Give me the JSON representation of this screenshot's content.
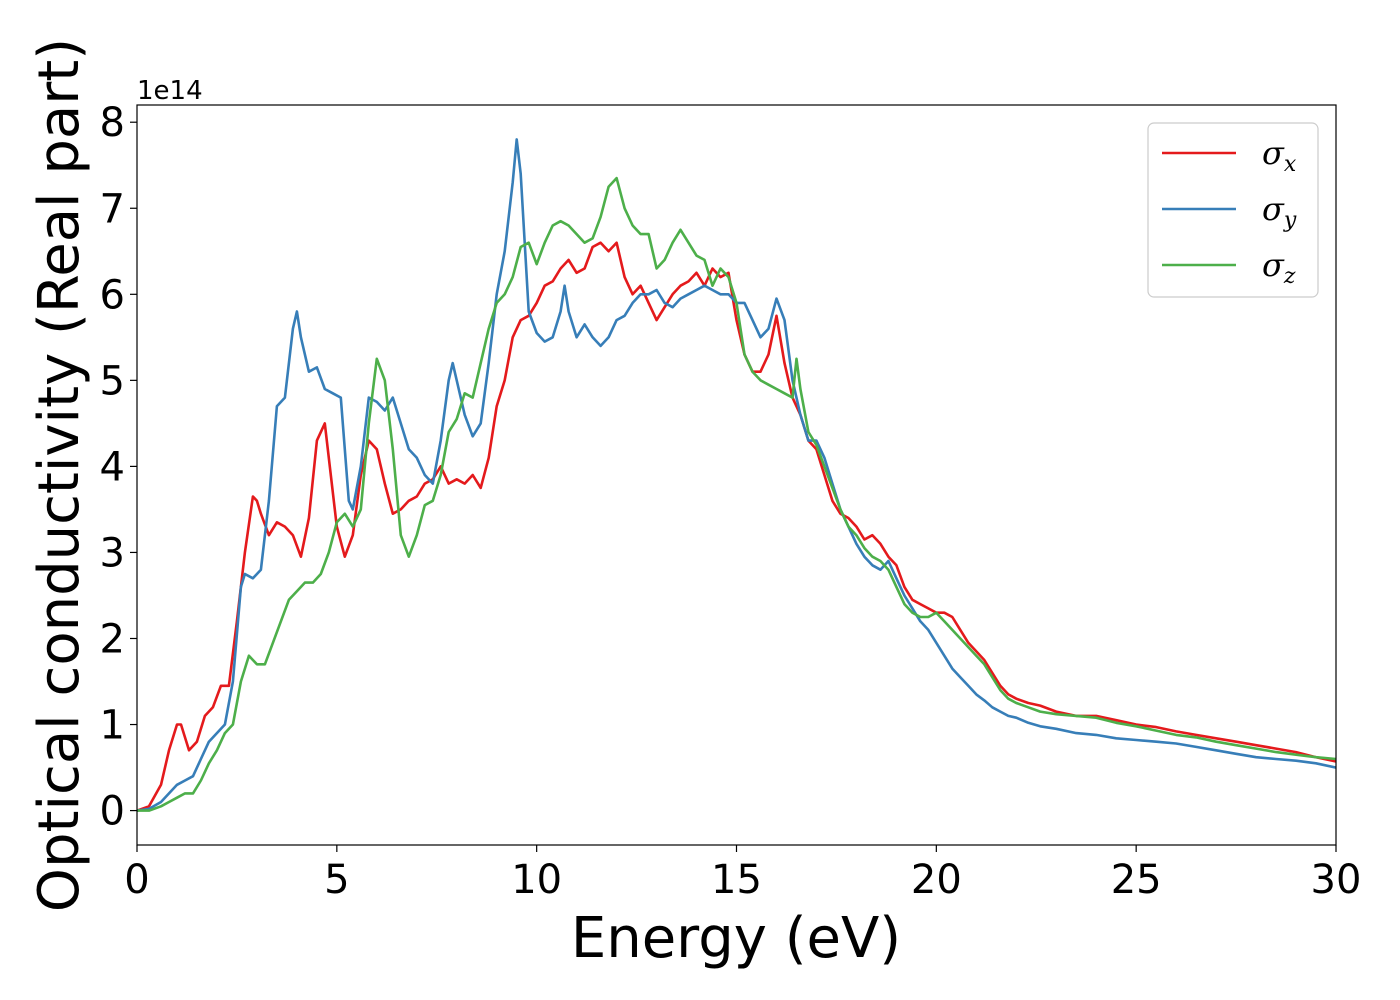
{
  "chart_data": {
    "type": "line",
    "xlabel": "Energy (eV)",
    "ylabel": "Optical conductivity (Real part)",
    "y_offset_label": "1e14",
    "xlim": [
      0,
      30
    ],
    "ylim": [
      -0.4,
      8.2
    ],
    "xticks": [
      0,
      5,
      10,
      15,
      20,
      25,
      30
    ],
    "xtick_labels": [
      "0",
      "5",
      "10",
      "15",
      "20",
      "25",
      "30"
    ],
    "yticks": [
      0,
      1,
      2,
      3,
      4,
      5,
      6,
      7,
      8
    ],
    "ytick_labels": [
      "0",
      "1",
      "2",
      "3",
      "4",
      "5",
      "6",
      "7",
      "8"
    ],
    "grid": false,
    "legend_position": "top-right",
    "series": [
      {
        "name": "σx",
        "symbol": "σ",
        "subscript": "x",
        "color": "#e41a1c",
        "x": [
          0,
          0.3,
          0.6,
          0.8,
          1.0,
          1.1,
          1.3,
          1.5,
          1.7,
          1.9,
          2.1,
          2.3,
          2.5,
          2.7,
          2.9,
          3.0,
          3.1,
          3.3,
          3.5,
          3.7,
          3.9,
          4.1,
          4.3,
          4.5,
          4.7,
          4.8,
          5.0,
          5.2,
          5.4,
          5.6,
          5.8,
          6.0,
          6.2,
          6.4,
          6.6,
          6.8,
          7.0,
          7.2,
          7.4,
          7.6,
          7.8,
          8.0,
          8.2,
          8.4,
          8.6,
          8.8,
          9.0,
          9.2,
          9.4,
          9.6,
          9.8,
          10.0,
          10.2,
          10.4,
          10.6,
          10.8,
          11.0,
          11.2,
          11.4,
          11.6,
          11.8,
          12.0,
          12.2,
          12.4,
          12.6,
          12.8,
          13.0,
          13.2,
          13.4,
          13.6,
          13.8,
          14.0,
          14.2,
          14.4,
          14.6,
          14.8,
          15.0,
          15.2,
          15.4,
          15.6,
          15.8,
          16.0,
          16.2,
          16.4,
          16.6,
          16.8,
          17.0,
          17.2,
          17.4,
          17.6,
          17.8,
          18.0,
          18.2,
          18.4,
          18.6,
          18.8,
          19.0,
          19.2,
          19.4,
          19.6,
          19.8,
          20.0,
          20.2,
          20.4,
          20.6,
          20.8,
          21.0,
          21.2,
          21.4,
          21.6,
          21.8,
          22.0,
          22.3,
          22.6,
          23.0,
          23.5,
          24.0,
          24.5,
          25.0,
          25.5,
          26.0,
          26.5,
          27.0,
          27.5,
          28.0,
          28.5,
          29.0,
          29.5,
          30.0
        ],
        "y": [
          0.0,
          0.05,
          0.3,
          0.7,
          1.0,
          1.0,
          0.7,
          0.8,
          1.1,
          1.2,
          1.45,
          1.45,
          2.2,
          3.0,
          3.65,
          3.6,
          3.45,
          3.2,
          3.35,
          3.3,
          3.2,
          2.95,
          3.4,
          4.3,
          4.5,
          4.1,
          3.3,
          2.95,
          3.2,
          3.9,
          4.3,
          4.2,
          3.8,
          3.45,
          3.5,
          3.6,
          3.65,
          3.8,
          3.85,
          4.0,
          3.8,
          3.85,
          3.8,
          3.9,
          3.75,
          4.1,
          4.7,
          5.0,
          5.5,
          5.7,
          5.75,
          5.9,
          6.1,
          6.15,
          6.3,
          6.4,
          6.25,
          6.3,
          6.55,
          6.6,
          6.5,
          6.6,
          6.2,
          6.0,
          6.1,
          5.9,
          5.7,
          5.85,
          6.0,
          6.1,
          6.15,
          6.25,
          6.1,
          6.3,
          6.2,
          6.25,
          5.7,
          5.3,
          5.1,
          5.1,
          5.3,
          5.75,
          5.2,
          4.8,
          4.6,
          4.3,
          4.2,
          3.9,
          3.6,
          3.45,
          3.4,
          3.3,
          3.15,
          3.2,
          3.1,
          2.95,
          2.85,
          2.6,
          2.45,
          2.4,
          2.35,
          2.3,
          2.3,
          2.25,
          2.1,
          1.95,
          1.85,
          1.75,
          1.6,
          1.45,
          1.35,
          1.3,
          1.25,
          1.22,
          1.15,
          1.1,
          1.1,
          1.05,
          1.0,
          0.97,
          0.92,
          0.88,
          0.84,
          0.8,
          0.76,
          0.72,
          0.68,
          0.62,
          0.57
        ]
      },
      {
        "name": "σy",
        "symbol": "σ",
        "subscript": "y",
        "color": "#377eb8",
        "x": [
          0,
          0.3,
          0.6,
          0.8,
          1.0,
          1.2,
          1.4,
          1.6,
          1.8,
          2.0,
          2.2,
          2.4,
          2.6,
          2.7,
          2.9,
          3.1,
          3.3,
          3.5,
          3.7,
          3.9,
          4.0,
          4.1,
          4.3,
          4.5,
          4.7,
          4.9,
          5.1,
          5.3,
          5.4,
          5.6,
          5.8,
          6.0,
          6.2,
          6.4,
          6.6,
          6.8,
          7.0,
          7.2,
          7.4,
          7.6,
          7.8,
          7.9,
          8.0,
          8.2,
          8.4,
          8.6,
          8.8,
          9.0,
          9.2,
          9.4,
          9.5,
          9.6,
          9.8,
          10.0,
          10.2,
          10.4,
          10.6,
          10.7,
          10.8,
          11.0,
          11.2,
          11.4,
          11.6,
          11.8,
          12.0,
          12.2,
          12.4,
          12.6,
          12.8,
          13.0,
          13.2,
          13.4,
          13.6,
          13.8,
          14.0,
          14.2,
          14.4,
          14.6,
          14.8,
          15.0,
          15.2,
          15.4,
          15.6,
          15.8,
          16.0,
          16.2,
          16.4,
          16.6,
          16.8,
          17.0,
          17.2,
          17.4,
          17.6,
          17.8,
          18.0,
          18.2,
          18.4,
          18.6,
          18.8,
          19.0,
          19.2,
          19.4,
          19.6,
          19.8,
          20.0,
          20.2,
          20.4,
          20.6,
          20.8,
          21.0,
          21.2,
          21.4,
          21.6,
          21.8,
          22.0,
          22.3,
          22.6,
          23.0,
          23.5,
          24.0,
          24.5,
          25.0,
          25.5,
          26.0,
          26.5,
          27.0,
          27.5,
          28.0,
          28.5,
          29.0,
          29.5,
          30.0
        ],
        "y": [
          0.0,
          0.02,
          0.1,
          0.2,
          0.3,
          0.35,
          0.4,
          0.6,
          0.8,
          0.9,
          1.0,
          1.5,
          2.6,
          2.75,
          2.7,
          2.8,
          3.6,
          4.7,
          4.8,
          5.6,
          5.8,
          5.5,
          5.1,
          5.15,
          4.9,
          4.85,
          4.8,
          3.6,
          3.5,
          4.0,
          4.8,
          4.75,
          4.65,
          4.8,
          4.5,
          4.2,
          4.1,
          3.9,
          3.8,
          4.3,
          5.0,
          5.2,
          5.0,
          4.6,
          4.35,
          4.5,
          5.2,
          6.0,
          6.5,
          7.3,
          7.8,
          7.4,
          5.8,
          5.55,
          5.45,
          5.5,
          5.8,
          6.1,
          5.8,
          5.5,
          5.65,
          5.5,
          5.4,
          5.5,
          5.7,
          5.75,
          5.9,
          6.0,
          6.0,
          6.05,
          5.9,
          5.85,
          5.95,
          6.0,
          6.05,
          6.1,
          6.05,
          6.0,
          6.0,
          5.9,
          5.9,
          5.7,
          5.5,
          5.6,
          5.95,
          5.7,
          5.0,
          4.6,
          4.3,
          4.3,
          4.1,
          3.8,
          3.5,
          3.3,
          3.1,
          2.95,
          2.85,
          2.8,
          2.9,
          2.7,
          2.5,
          2.35,
          2.2,
          2.1,
          1.95,
          1.8,
          1.65,
          1.55,
          1.45,
          1.35,
          1.28,
          1.2,
          1.15,
          1.1,
          1.08,
          1.02,
          0.98,
          0.95,
          0.9,
          0.88,
          0.84,
          0.82,
          0.8,
          0.78,
          0.74,
          0.7,
          0.66,
          0.62,
          0.6,
          0.58,
          0.55,
          0.5
        ]
      },
      {
        "name": "σz",
        "symbol": "σ",
        "subscript": "z",
        "color": "#4daf4a",
        "x": [
          0,
          0.3,
          0.6,
          0.8,
          1.0,
          1.2,
          1.4,
          1.6,
          1.8,
          2.0,
          2.2,
          2.4,
          2.6,
          2.8,
          3.0,
          3.2,
          3.4,
          3.6,
          3.8,
          4.0,
          4.2,
          4.4,
          4.6,
          4.8,
          5.0,
          5.2,
          5.4,
          5.6,
          5.8,
          6.0,
          6.2,
          6.4,
          6.6,
          6.8,
          7.0,
          7.2,
          7.4,
          7.6,
          7.8,
          8.0,
          8.2,
          8.4,
          8.6,
          8.8,
          9.0,
          9.2,
          9.4,
          9.6,
          9.8,
          10.0,
          10.2,
          10.4,
          10.6,
          10.8,
          11.0,
          11.2,
          11.4,
          11.6,
          11.8,
          12.0,
          12.2,
          12.4,
          12.6,
          12.8,
          13.0,
          13.2,
          13.4,
          13.6,
          13.8,
          14.0,
          14.2,
          14.4,
          14.6,
          14.8,
          15.0,
          15.2,
          15.4,
          15.6,
          15.8,
          16.0,
          16.2,
          16.4,
          16.5,
          16.6,
          16.8,
          17.0,
          17.2,
          17.4,
          17.6,
          17.8,
          18.0,
          18.2,
          18.4,
          18.6,
          18.8,
          19.0,
          19.2,
          19.4,
          19.6,
          19.8,
          20.0,
          20.2,
          20.4,
          20.6,
          20.8,
          21.0,
          21.2,
          21.4,
          21.6,
          21.8,
          22.0,
          22.3,
          22.6,
          23.0,
          23.5,
          24.0,
          24.5,
          25.0,
          25.5,
          26.0,
          26.5,
          27.0,
          27.5,
          28.0,
          28.5,
          29.0,
          29.5,
          30.0
        ],
        "y": [
          0.0,
          0.0,
          0.05,
          0.1,
          0.15,
          0.2,
          0.2,
          0.35,
          0.55,
          0.7,
          0.9,
          1.0,
          1.5,
          1.8,
          1.7,
          1.7,
          1.95,
          2.2,
          2.45,
          2.55,
          2.65,
          2.65,
          2.75,
          3.0,
          3.35,
          3.45,
          3.3,
          3.5,
          4.5,
          5.25,
          5.0,
          4.2,
          3.2,
          2.95,
          3.2,
          3.55,
          3.6,
          3.9,
          4.4,
          4.55,
          4.85,
          4.8,
          5.2,
          5.6,
          5.9,
          6.0,
          6.2,
          6.55,
          6.6,
          6.35,
          6.6,
          6.8,
          6.85,
          6.8,
          6.7,
          6.6,
          6.65,
          6.9,
          7.25,
          7.35,
          7.0,
          6.8,
          6.7,
          6.7,
          6.3,
          6.4,
          6.6,
          6.75,
          6.6,
          6.45,
          6.4,
          6.1,
          6.3,
          6.2,
          5.9,
          5.3,
          5.1,
          5.0,
          4.95,
          4.9,
          4.85,
          4.8,
          5.25,
          4.9,
          4.4,
          4.25,
          4.0,
          3.75,
          3.5,
          3.3,
          3.2,
          3.05,
          2.95,
          2.9,
          2.8,
          2.6,
          2.4,
          2.3,
          2.25,
          2.25,
          2.3,
          2.2,
          2.1,
          2.0,
          1.9,
          1.8,
          1.7,
          1.55,
          1.4,
          1.3,
          1.25,
          1.2,
          1.15,
          1.12,
          1.1,
          1.08,
          1.02,
          0.98,
          0.93,
          0.88,
          0.85,
          0.8,
          0.76,
          0.72,
          0.68,
          0.65,
          0.62,
          0.6
        ]
      }
    ]
  }
}
